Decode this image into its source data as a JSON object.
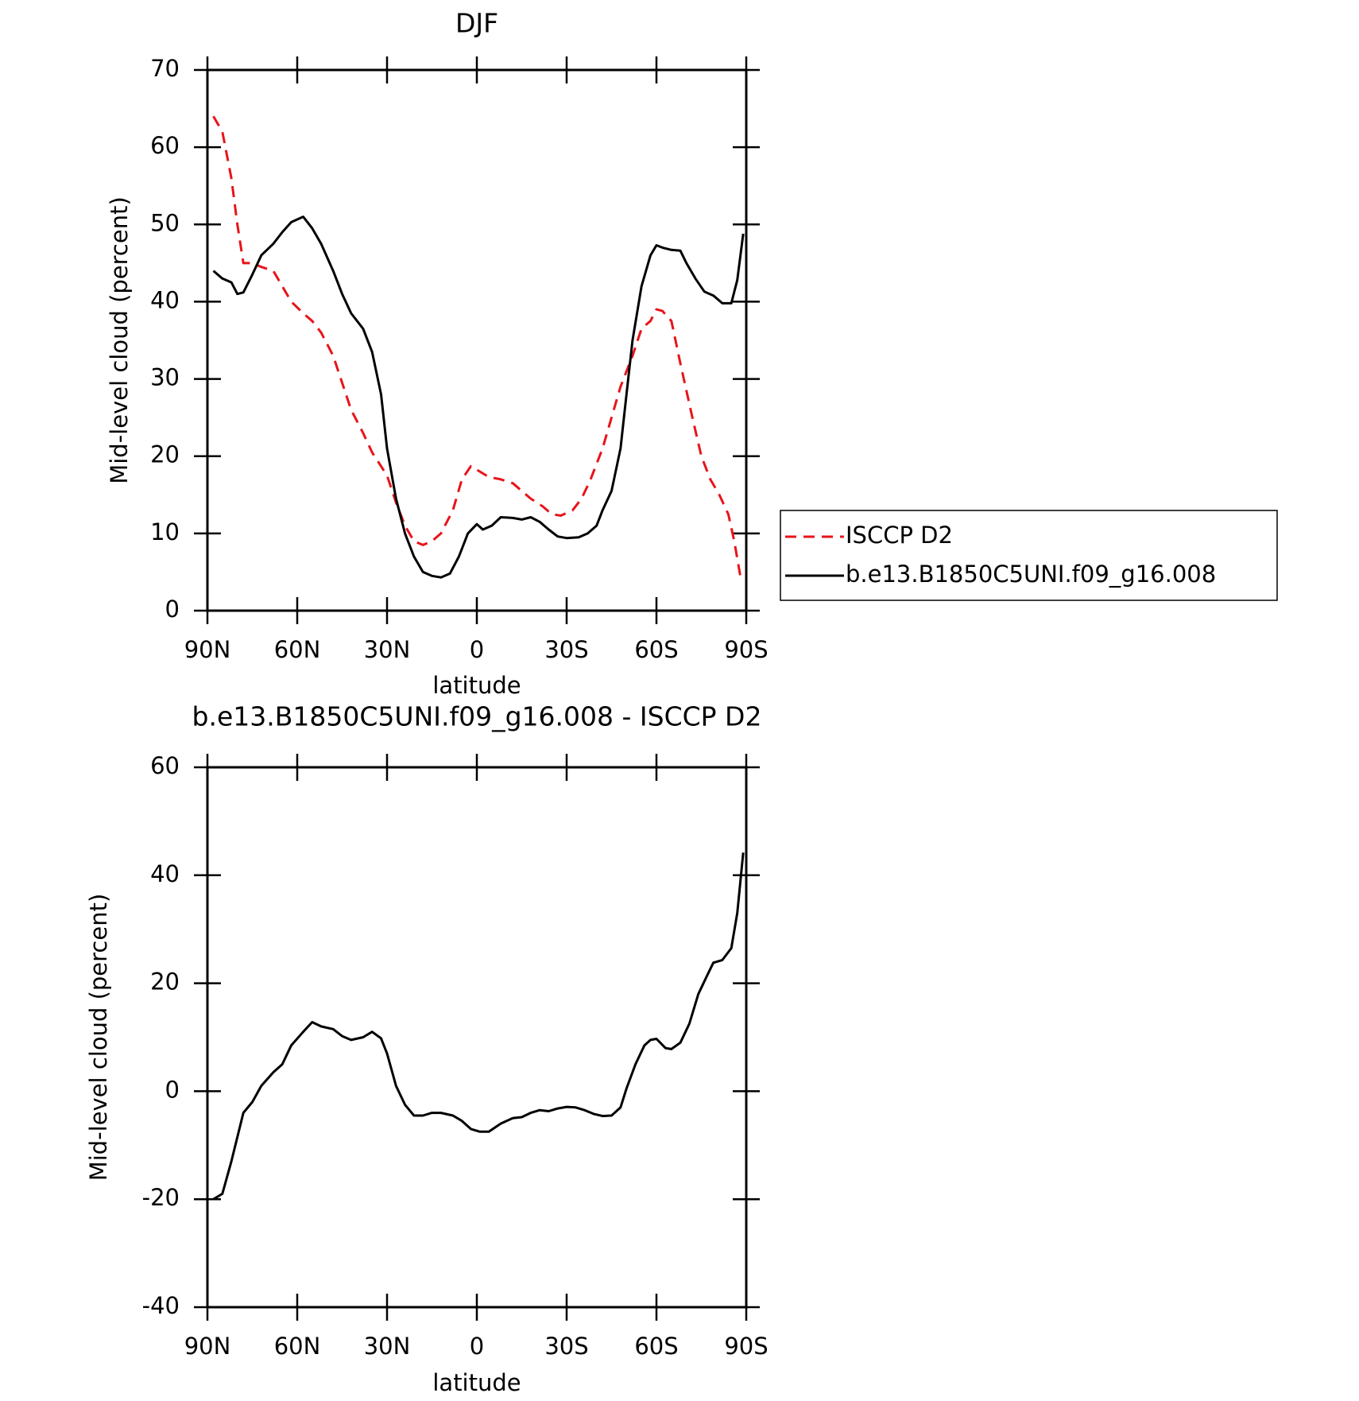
{
  "chart_data": [
    {
      "type": "line",
      "title": "DJF",
      "xlabel": "latitude",
      "ylabel": "Mid-level cloud (percent)",
      "xlim": [
        90,
        -90
      ],
      "xticks": [
        {
          "value": 90,
          "label": "90N"
        },
        {
          "value": 60,
          "label": "60N"
        },
        {
          "value": 30,
          "label": "30N"
        },
        0,
        {
          "value": -30,
          "label": "30S"
        },
        {
          "value": -60,
          "label": "60S"
        },
        {
          "value": -90,
          "label": "90S"
        }
      ],
      "ylim": [
        0,
        70
      ],
      "yticks": [
        0,
        10,
        20,
        30,
        40,
        50,
        60,
        70
      ],
      "legend": "outside-right",
      "series": [
        {
          "name": "ISCCP D2",
          "color": "#e8141a",
          "dashed": true,
          "x": [
            88,
            85,
            82,
            80,
            78,
            75,
            72,
            68,
            65,
            62,
            58,
            55,
            52,
            48,
            45,
            42,
            38,
            35,
            30,
            27,
            24,
            21,
            18,
            15,
            12,
            8,
            5,
            2,
            -1,
            -4,
            -8,
            -12,
            -15,
            -18,
            -22,
            -25,
            -28,
            -32,
            -35,
            -38,
            -42,
            -45,
            -48,
            -52,
            -55,
            -58,
            -60,
            -62,
            -65,
            -68,
            -72,
            -75,
            -78,
            -81,
            -84,
            -86,
            -88
          ],
          "values": [
            64,
            62,
            56,
            50,
            45,
            45,
            44.5,
            44,
            42,
            40,
            38.5,
            37.5,
            36,
            33,
            29.5,
            26,
            23,
            20.5,
            17.5,
            14,
            11,
            9,
            8.5,
            9,
            10,
            13,
            17,
            18.7,
            18,
            17.3,
            17,
            16.5,
            15.5,
            14.5,
            13.5,
            12.5,
            12.3,
            13,
            14.5,
            17,
            21,
            25,
            29,
            33,
            36.5,
            37.5,
            39,
            38.8,
            37.5,
            32,
            25,
            20,
            17,
            15,
            12.5,
            9,
            4.5
          ]
        },
        {
          "name": "b.e13.B1850C5UNI.f09_g16.008",
          "color": "#000000",
          "dashed": false,
          "x": [
            88,
            85,
            82,
            80,
            78,
            75,
            72,
            68,
            65,
            62,
            58,
            55,
            52,
            48,
            45,
            42,
            38,
            35,
            32,
            30,
            27,
            24,
            21,
            18,
            15,
            12,
            9,
            6,
            3,
            0,
            -2,
            -5,
            -8,
            -12,
            -15,
            -18,
            -21,
            -24,
            -27,
            -30,
            -34,
            -37,
            -40,
            -42,
            -45,
            -48,
            -50,
            -52,
            -55,
            -58,
            -60,
            -62,
            -65,
            -68,
            -70,
            -73,
            -76,
            -79,
            -82,
            -85,
            -87,
            -89
          ],
          "values": [
            44,
            43,
            42.5,
            41,
            41.2,
            43.5,
            46,
            47.5,
            49,
            50.3,
            51,
            49.5,
            47.5,
            44,
            41,
            38.5,
            36.5,
            33.5,
            28,
            21,
            14.5,
            10,
            7,
            5,
            4.5,
            4.3,
            4.8,
            7,
            10,
            11.2,
            10.5,
            11,
            12.1,
            12,
            11.8,
            12.1,
            11.5,
            10.5,
            9.6,
            9.4,
            9.5,
            10,
            11,
            13,
            15.5,
            21,
            28,
            35,
            42,
            46,
            47.3,
            47,
            46.7,
            46.6,
            45,
            43,
            41.3,
            40.8,
            39.8,
            39.8,
            42.8,
            48.8
          ]
        }
      ]
    },
    {
      "type": "line",
      "title": "b.e13.B1850C5UNI.f09_g16.008 - ISCCP D2",
      "xlabel": "latitude",
      "ylabel": "Mid-level cloud (percent)",
      "xlim": [
        90,
        -90
      ],
      "xticks": [
        {
          "value": 90,
          "label": "90N"
        },
        {
          "value": 60,
          "label": "60N"
        },
        {
          "value": 30,
          "label": "30N"
        },
        0,
        {
          "value": -30,
          "label": "30S"
        },
        {
          "value": -60,
          "label": "60S"
        },
        {
          "value": -90,
          "label": "90S"
        }
      ],
      "ylim": [
        -40,
        60
      ],
      "yticks": [
        -40,
        -20,
        0,
        20,
        40,
        60
      ],
      "series": [
        {
          "color": "#000000",
          "dashed": false,
          "x": [
            88,
            85,
            82,
            78,
            75,
            72,
            68,
            65,
            62,
            58,
            55,
            52,
            48,
            45,
            42,
            38,
            35,
            32,
            30,
            27,
            24,
            21,
            18,
            15,
            12,
            8,
            5,
            2,
            -1,
            -4,
            -8,
            -12,
            -15,
            -18,
            -21,
            -24,
            -27,
            -30,
            -33,
            -36,
            -39,
            -42,
            -45,
            -48,
            -50,
            -53,
            -56,
            -58,
            -60,
            -63,
            -65,
            -68,
            -71,
            -74,
            -77,
            -79,
            -82,
            -85,
            -87,
            -89
          ],
          "values": [
            -20,
            -19,
            -13,
            -4,
            -2,
            1,
            3.5,
            5,
            8.5,
            11,
            12.8,
            12,
            11.5,
            10.2,
            9.5,
            10,
            11,
            9.8,
            7,
            1,
            -2.5,
            -4.5,
            -4.5,
            -4,
            -4,
            -4.5,
            -5.5,
            -7,
            -7.5,
            -7.5,
            -6,
            -5,
            -4.8,
            -4,
            -3.5,
            -3.7,
            -3.2,
            -2.9,
            -3,
            -3.5,
            -4.2,
            -4.6,
            -4.5,
            -3,
            0.5,
            5,
            8.5,
            9.5,
            9.7,
            8,
            7.8,
            9,
            12.5,
            18,
            21.5,
            23.8,
            24.3,
            26.5,
            33,
            44.2
          ]
        }
      ]
    }
  ]
}
